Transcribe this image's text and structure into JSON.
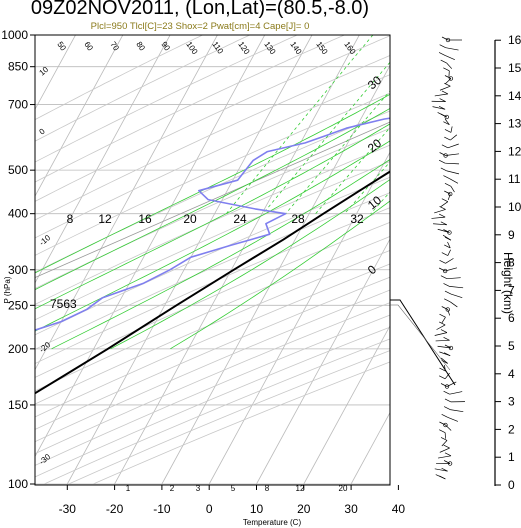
{
  "chart_data": {
    "type": "line",
    "title": "09Z02NOV2011, (Lon,Lat)=(80.5,-8.0)",
    "subtitle": "Plcl=950 Tlcl[C]=23 Shox=2 Pwat[cm]=4 Cape[J]= 0",
    "xlabel": "Temperature (C)",
    "ylabel": "P (hPa)",
    "height_axis_label": "Height (km)",
    "annotation": "7563",
    "x_ticks": [
      "-30",
      "-20",
      "-10",
      "0",
      "10",
      "20",
      "30",
      "40"
    ],
    "x_values": [
      -30,
      -20,
      -10,
      0,
      10,
      20,
      30,
      40
    ],
    "p_ticks": [
      "100",
      "150",
      "200",
      "250",
      "300",
      "400",
      "500",
      "700",
      "850",
      "1000"
    ],
    "p_values": [
      100,
      150,
      200,
      250,
      300,
      400,
      500,
      700,
      850,
      1000
    ],
    "height_ticks": [
      "0",
      "1",
      "2",
      "3",
      "4",
      "5",
      "6",
      "7",
      "8",
      "9",
      "10",
      "11",
      "12",
      "13",
      "14",
      "15",
      "16"
    ],
    "mixing_ratio_labels": [
      "8",
      "12",
      "16",
      "20",
      "24",
      "28",
      "32"
    ],
    "mixing_ratio_bottom_labels": [
      "1",
      "2",
      "3",
      "5",
      "8",
      "12",
      "20"
    ],
    "dry_adiabat_labels": [
      "-30",
      "-20",
      "-10",
      "0",
      "10",
      "20",
      "30"
    ],
    "top_dry_adiabat_labels": [
      "50",
      "60",
      "70",
      "80",
      "90",
      "100",
      "110",
      "120",
      "130",
      "140",
      "150",
      "160"
    ],
    "series": [
      {
        "name": "Temperature",
        "color": "#000000",
        "points": [
          [
            1000,
            28.5
          ],
          [
            975,
            27.0
          ],
          [
            950,
            24.5
          ],
          [
            925,
            23.5
          ],
          [
            900,
            22.5
          ],
          [
            875,
            21.5
          ],
          [
            850,
            21.0
          ],
          [
            825,
            20.0
          ],
          [
            800,
            19.0
          ],
          [
            775,
            18.5
          ],
          [
            750,
            18.0
          ],
          [
            700,
            16.0
          ],
          [
            650,
            12.5
          ],
          [
            600,
            9.5
          ],
          [
            550,
            6.0
          ],
          [
            500,
            2.5
          ],
          [
            450,
            -2.0
          ],
          [
            400,
            -7.0
          ],
          [
            350,
            -12.5
          ],
          [
            300,
            -19.5
          ],
          [
            250,
            -27.5
          ],
          [
            200,
            -37.0
          ],
          [
            175,
            -43.0
          ],
          [
            150,
            -50.0
          ],
          [
            125,
            -58.0
          ],
          [
            115,
            -62.0
          ],
          [
            105,
            -66.5
          ],
          [
            100,
            -69.0
          ]
        ]
      },
      {
        "name": "Dewpoint",
        "color": "#7f7fef",
        "points": [
          [
            1000,
            23.5
          ],
          [
            975,
            22.0
          ],
          [
            950,
            21.0
          ],
          [
            925,
            18.0
          ],
          [
            900,
            17.0
          ],
          [
            875,
            16.0
          ],
          [
            850,
            16.5
          ],
          [
            800,
            12.0
          ],
          [
            750,
            10.5
          ],
          [
            725,
            8.0
          ],
          [
            700,
            4.0
          ],
          [
            680,
            6.0
          ],
          [
            650,
            -5.0
          ],
          [
            620,
            -12.0
          ],
          [
            600,
            -15.0
          ],
          [
            575,
            -19.0
          ],
          [
            550,
            -26.0
          ],
          [
            525,
            -28.0
          ],
          [
            500,
            -28.5
          ],
          [
            475,
            -29.0
          ],
          [
            450,
            -36.0
          ],
          [
            430,
            -33.0
          ],
          [
            410,
            -22.0
          ],
          [
            400,
            -15.0
          ],
          [
            380,
            -18.0
          ],
          [
            360,
            -16.0
          ],
          [
            340,
            -23.0
          ],
          [
            320,
            -30.0
          ],
          [
            300,
            -33.0
          ],
          [
            280,
            -37.0
          ],
          [
            260,
            -44.0
          ],
          [
            245,
            -46.0
          ],
          [
            230,
            -50.0
          ],
          [
            215,
            -57.0
          ],
          [
            200,
            -61.0
          ],
          [
            175,
            -68.0
          ],
          [
            150,
            -74.0
          ],
          [
            130,
            -79.0
          ],
          [
            115,
            -82.0
          ],
          [
            100,
            -84.0
          ]
        ]
      }
    ],
    "grid": true
  },
  "colors": {
    "temperature": "#000000",
    "dewpoint": "#7f7fef",
    "mixing_ratio": "#33cc33",
    "dry_adiabat": "#aaaaaa",
    "grid": "#bbbbbb",
    "subtitle": "#8a7a1a"
  }
}
